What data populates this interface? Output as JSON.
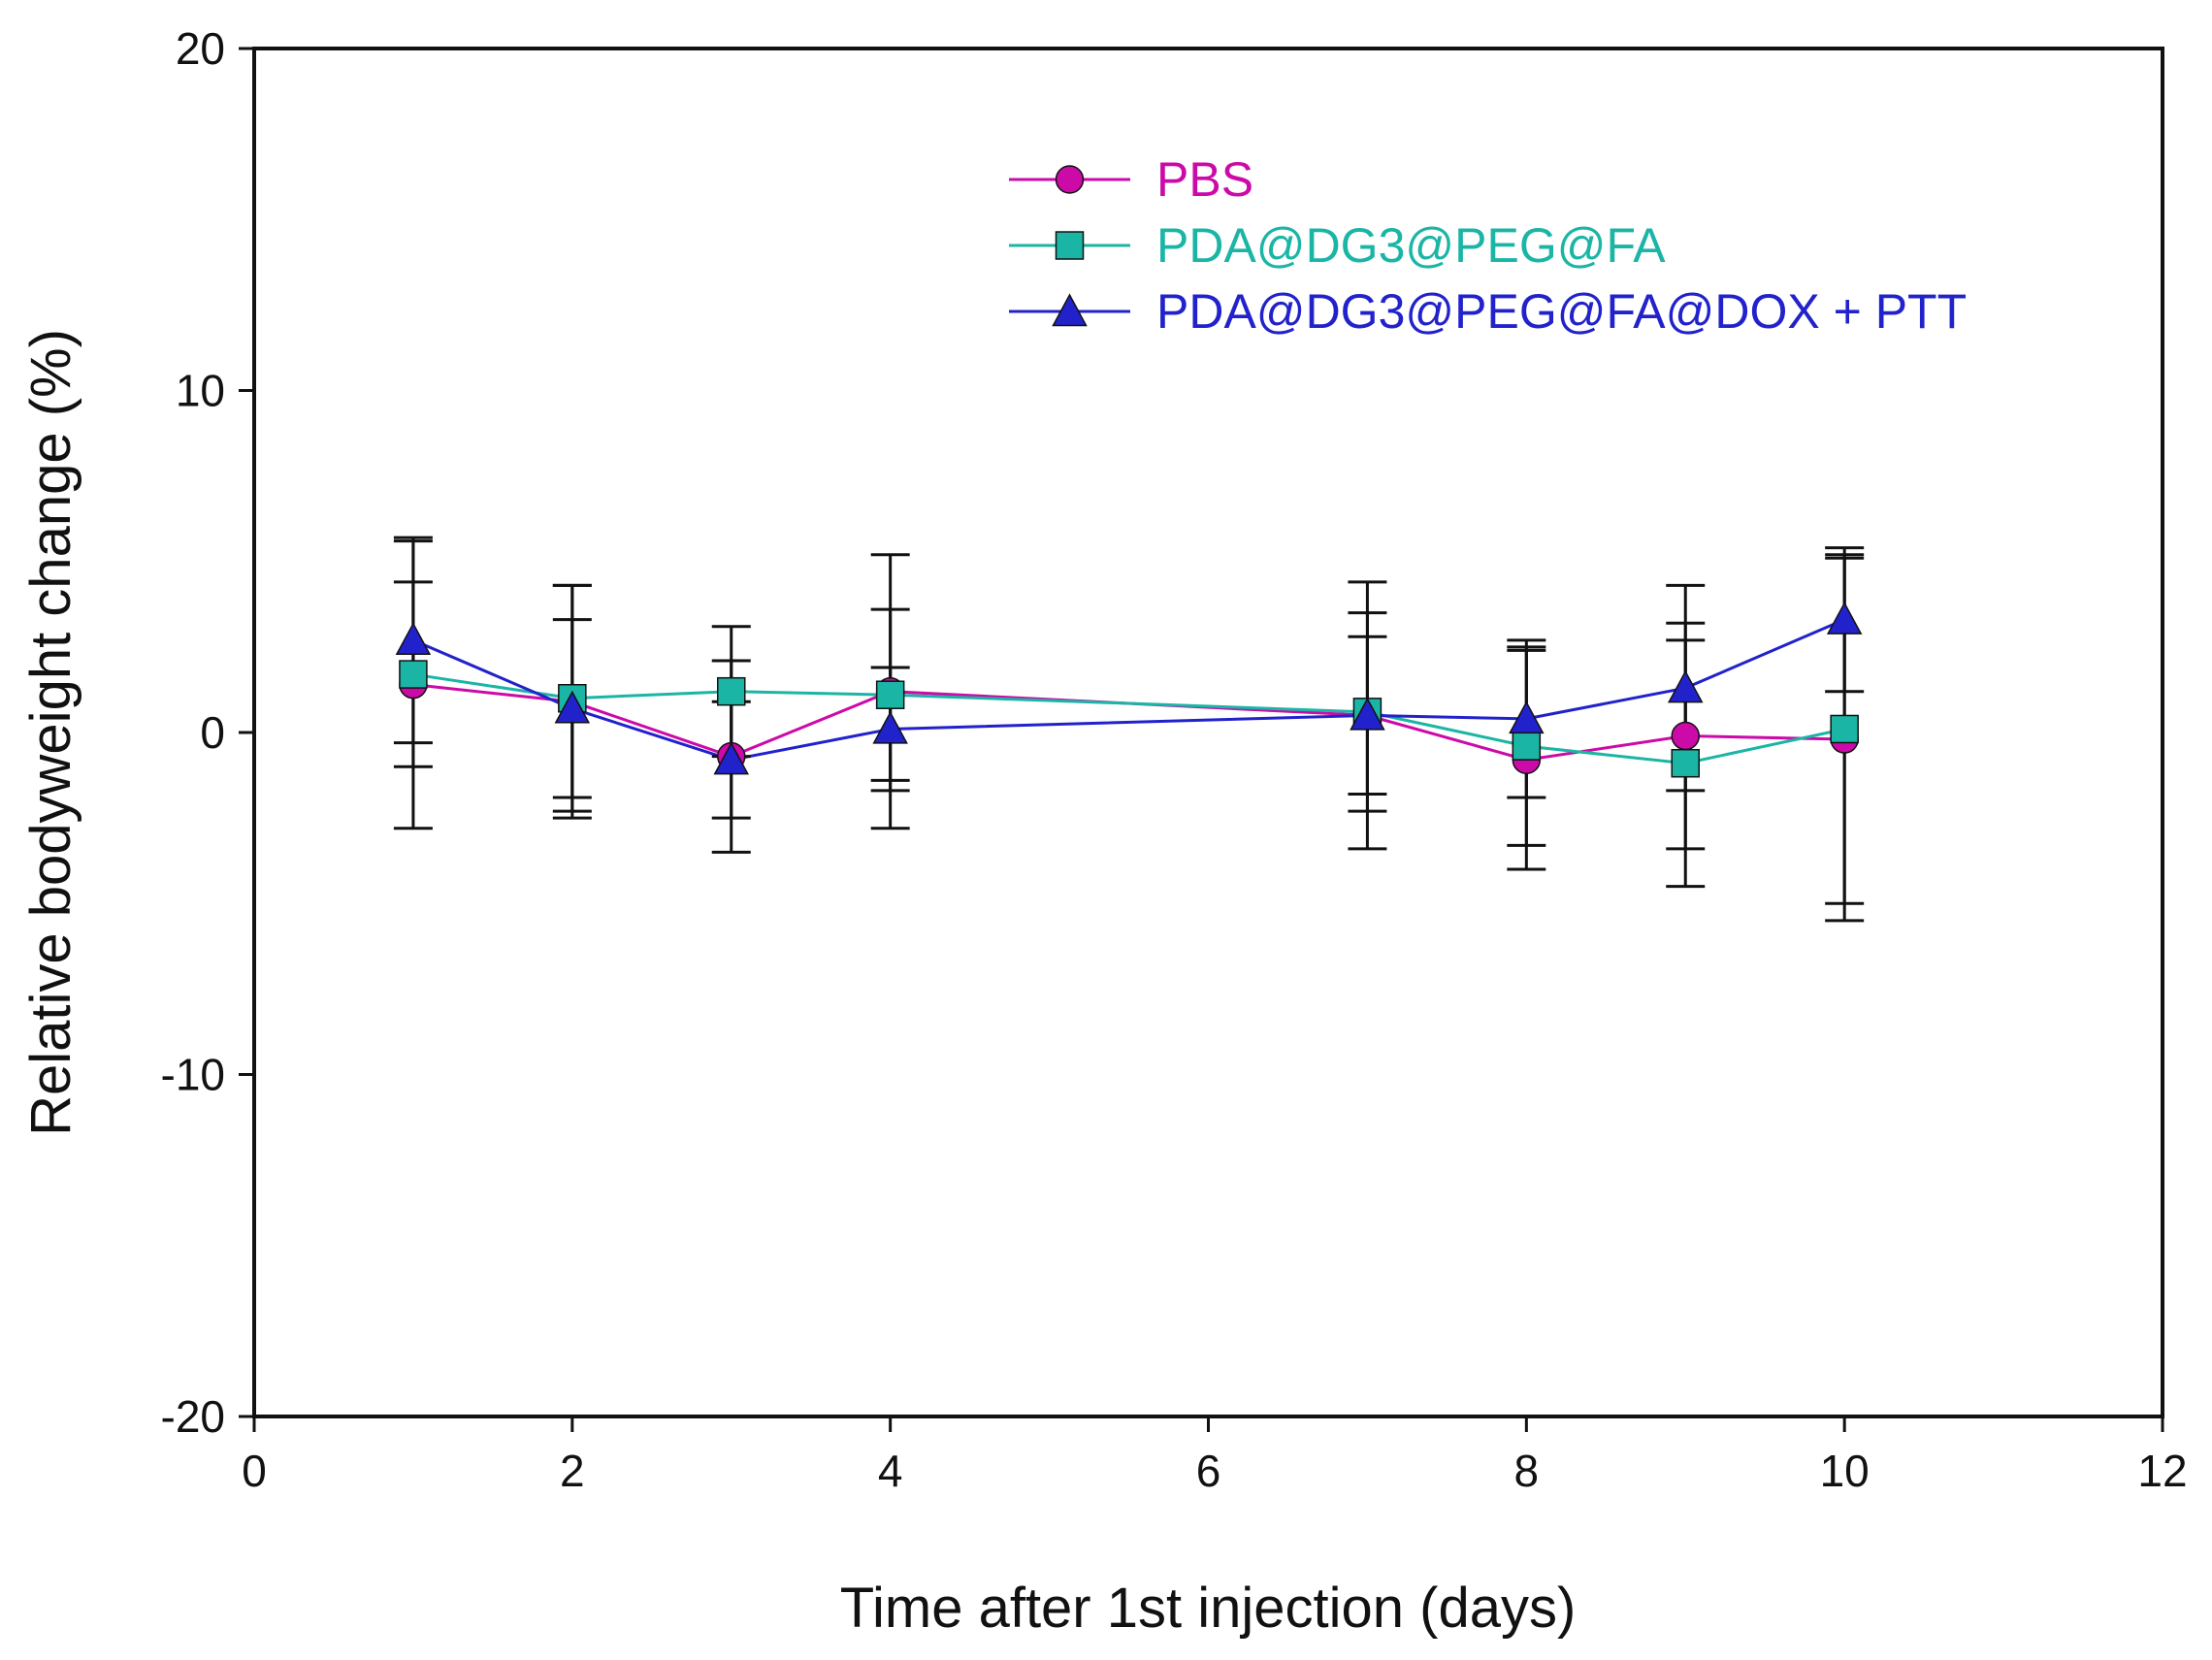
{
  "chart_data": {
    "type": "line",
    "title": "",
    "xlabel": "Time after 1st injection (days)",
    "ylabel": "Relative bodyweight change (%)",
    "xlim": [
      0,
      12
    ],
    "ylim": [
      -20,
      20
    ],
    "xticks": [
      0,
      2,
      4,
      6,
      8,
      10,
      12
    ],
    "yticks": [
      -20,
      -10,
      0,
      10,
      20
    ],
    "grid": false,
    "legend_position": "top-right",
    "series": [
      {
        "name": "PBS",
        "color": "#cc0aa8",
        "marker": "circle",
        "x": [
          1,
          2,
          3,
          4,
          7,
          8,
          9,
          10
        ],
        "y": [
          1.4,
          0.9,
          -0.7,
          1.2,
          0.5,
          -0.8,
          -0.1,
          -0.2
        ],
        "err": [
          4.2,
          3.4,
          2.8,
          4.0,
          3.9,
          3.2,
          3.3,
          5.3
        ]
      },
      {
        "name": "PDA@DG3@PEG@FA",
        "color": "#1bb5a6",
        "marker": "square",
        "x": [
          1,
          2,
          3,
          4,
          7,
          8,
          9,
          10
        ],
        "y": [
          1.7,
          1.0,
          1.2,
          1.1,
          0.6,
          -0.4,
          -0.9,
          0.1
        ],
        "err": [
          2.7,
          3.3,
          1.9,
          2.5,
          2.9,
          2.9,
          3.6,
          5.1
        ]
      },
      {
        "name": "PDA@DG3@PEG@FA@DOX + PTT",
        "color": "#2222cc",
        "marker": "triangle",
        "x": [
          1,
          2,
          3,
          4,
          7,
          8,
          9,
          10
        ],
        "y": [
          2.7,
          0.7,
          -0.8,
          0.1,
          0.5,
          0.4,
          1.3,
          3.3
        ],
        "err": [
          3.0,
          2.6,
          1.7,
          1.8,
          2.3,
          2.3,
          3.0,
          2.1
        ]
      }
    ]
  }
}
